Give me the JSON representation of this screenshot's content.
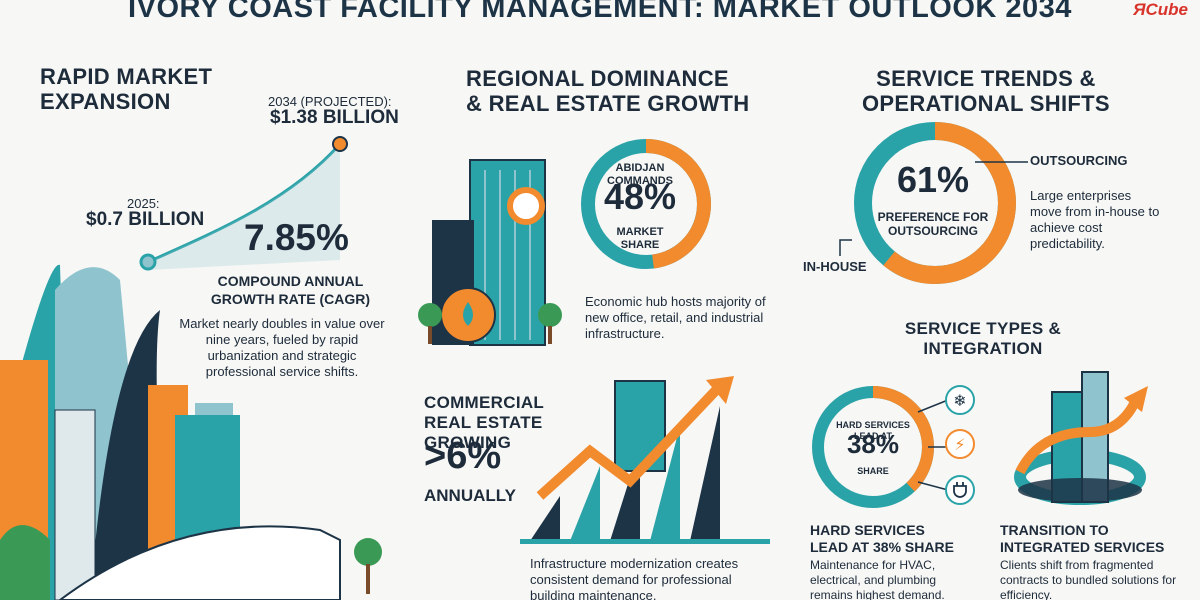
{
  "header": {
    "title": "IVORY COAST FACILITY MANAGEMENT: MARKET OUTLOOK 2034",
    "brand": "ЯCube"
  },
  "market_expansion": {
    "title_line1": "RAPID MARKET",
    "title_line2": "EXPANSION",
    "projected_label": "2034 (PROJECTED):",
    "projected_value": "$1.38 BILLION",
    "base_label": "2025:",
    "base_value": "$0.7 BILLION",
    "cagr_value": "7.85%",
    "cagr_label_line1": "COMPOUND ANNUAL",
    "cagr_label_line2": "GROWTH RATE (CAGR)",
    "description": "Market nearly doubles in value over nine years, fueled by rapid urbanization and strategic professional service shifts."
  },
  "regional": {
    "title_line1": "REGIONAL DOMINANCE",
    "title_line2": "& REAL ESTATE GROWTH",
    "abidjan_top": "ABIDJAN COMMANDS",
    "abidjan_pct": "48%",
    "abidjan_bottom": "MARKET SHARE",
    "abidjan_share": 0.48,
    "description": "Economic hub hosts majority of new office, retail, and industrial infrastructure."
  },
  "commercial": {
    "title_line1": "COMMERCIAL",
    "title_line2": "REAL ESTATE",
    "title_line3": "GROWING",
    "value": ">6%",
    "annual": "ANNUALLY",
    "description": "Infrastructure modernization creates consistent demand for professional building maintenance."
  },
  "service_trends": {
    "title_line1": "SERVICE TRENDS &",
    "title_line2": "OPERATIONAL SHIFTS",
    "outsourcing_pct": "61%",
    "outsourcing_share": 0.61,
    "outsourcing_label": "PREFERENCE FOR OUTSOURCING",
    "outsourcing_word": "OUTSOURCING",
    "inhouse_word": "IN-HOUSE",
    "description": "Large enterprises move from in-house to achieve cost predictability."
  },
  "service_types": {
    "title_line1": "SERVICE TYPES &",
    "title_line2": "INTEGRATION",
    "hard_top": "HARD SERVICES LEAD AT",
    "hard_pct": "38%",
    "hard_share": 0.38,
    "hard_bottom": "SHARE",
    "hard_title_line1": "HARD SERVICES",
    "hard_title_line2": "LEAD AT 38% SHARE",
    "hard_desc": "Maintenance for HVAC, electrical, and plumbing remains highest demand.",
    "integ_title_line1": "TRANSITION TO",
    "integ_title_line2": "INTEGRATED SERVICES",
    "integ_desc": "Clients shift from fragmented contracts to bundled solutions for efficiency."
  },
  "colors": {
    "teal": "#2aa3a8",
    "orange": "#f28a2e",
    "navy": "#1d3447",
    "light_blue": "#8fc4cf"
  },
  "icons": [
    "snowflake-icon",
    "lightning-icon",
    "plug-icon",
    "tree-icon",
    "growth-arrow-icon",
    "building-icon"
  ]
}
